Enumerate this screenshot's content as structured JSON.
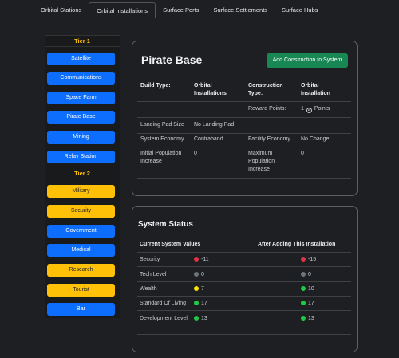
{
  "tabs": [
    "Orbital Stations",
    "Orbital Installations",
    "Surface Ports",
    "Surface Settlements",
    "Surface Hubs"
  ],
  "sidebar": {
    "tier1_label": "Tier 1",
    "tier1_items": [
      "Satellite",
      "Communications",
      "Space Farm",
      "Pirate Base",
      "Mining",
      "Relay Station"
    ],
    "tier2_label": "Tier 2",
    "tier2_items": [
      "Military",
      "Security",
      "Government",
      "Medical",
      "Research",
      "Tourist",
      "Bar"
    ]
  },
  "colors": {
    "blue": "#0d6efd",
    "yellow": "#ffc107",
    "green": "#198754",
    "red": "#dc3545",
    "gray": "#6c757d",
    "dot_yellow": "#ffe600",
    "dot_green": "#20c945"
  },
  "detail": {
    "title": "Pirate Base",
    "add_button": "Add Construction to System",
    "build_type_label": "Build Type:",
    "build_type_value": "Orbital Installations",
    "construction_type_label": "Construction Type:",
    "construction_type_value": "Orbital Installation",
    "reward_label": "Reward Points:",
    "reward_value_num": "1",
    "reward_value_unit": "Points",
    "landing_pad_label": "Landing Pad Size",
    "landing_pad_value": "No Landing Pad",
    "system_economy_label": "System Economy",
    "system_economy_value": "Contraband",
    "facility_economy_label": "Facility Economy",
    "facility_economy_value": "No Change",
    "initial_pop_label": "Initial Population Increase",
    "initial_pop_value": "0",
    "max_pop_label": "Maximum Population Increase",
    "max_pop_value": "0"
  },
  "system_status": {
    "title": "System Status",
    "col_current": "Current System Values",
    "col_after": "After Adding This Installation",
    "rows": [
      {
        "label": "Security",
        "current": "-11",
        "current_color": "red",
        "after": "-15",
        "after_color": "red"
      },
      {
        "label": "Tech Level",
        "current": "0",
        "current_color": "gray",
        "after": "0",
        "after_color": "gray"
      },
      {
        "label": "Wealth",
        "current": "7",
        "current_color": "dot_yellow",
        "after": "10",
        "after_color": "dot_green"
      },
      {
        "label": "Standard Of Living",
        "current": "17",
        "current_color": "dot_green",
        "after": "17",
        "after_color": "dot_green"
      },
      {
        "label": "Development Level",
        "current": "13",
        "current_color": "dot_green",
        "after": "13",
        "after_color": "dot_green"
      }
    ]
  }
}
